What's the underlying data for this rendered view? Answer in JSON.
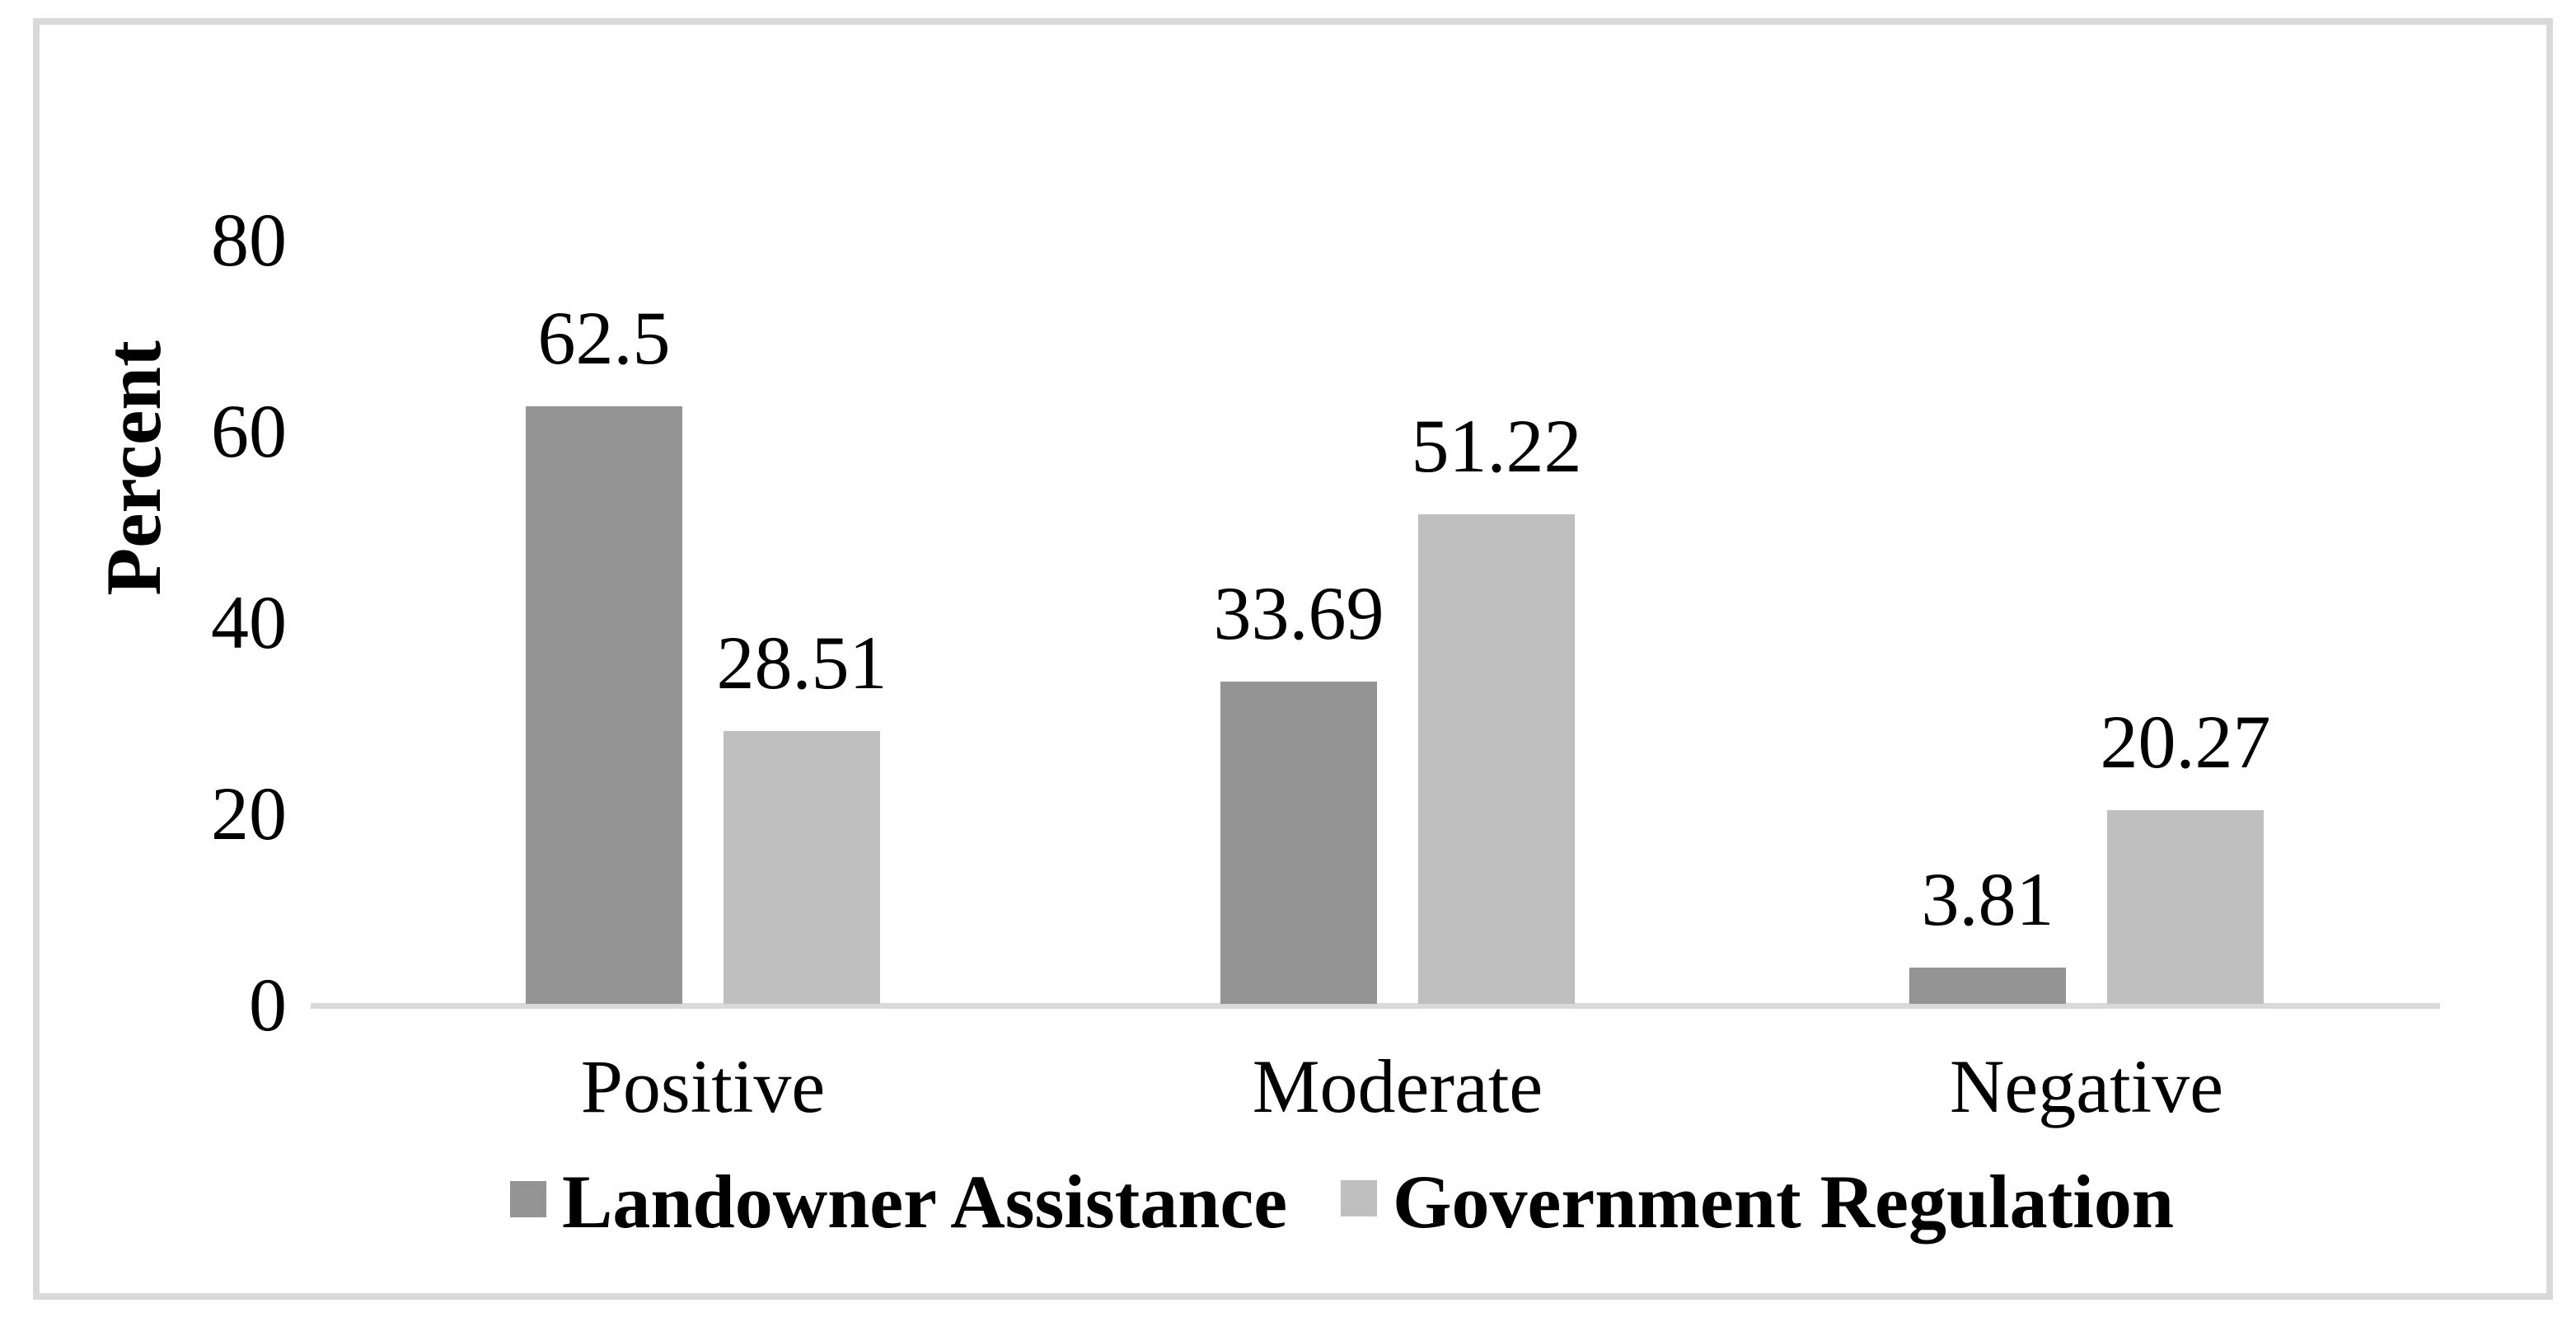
{
  "figure": {
    "background_color": "#ffffff",
    "border_color": "#d9d9d9"
  },
  "chart_data": {
    "type": "bar",
    "title": "",
    "xlabel": "",
    "ylabel": "Percent",
    "categories": [
      "Positive",
      "Moderate",
      "Negative"
    ],
    "series": [
      {
        "name": "Landowner Assistance",
        "color": "#949494",
        "values": [
          62.5,
          33.69,
          3.81
        ]
      },
      {
        "name": "Government Regulation",
        "color": "#bfbfbf",
        "values": [
          28.51,
          51.22,
          20.27
        ]
      }
    ],
    "data_labels": [
      [
        "62.5",
        "33.69",
        "3.81"
      ],
      [
        "28.51",
        "51.22",
        "20.27"
      ]
    ],
    "ylim": [
      0,
      80
    ],
    "yticks": [
      0,
      20,
      40,
      60,
      80
    ],
    "grid": "off",
    "tick_marks": "none",
    "axis_line_color": "#d9d9d9",
    "legend_position": "bottom",
    "text_color": "#000000"
  }
}
